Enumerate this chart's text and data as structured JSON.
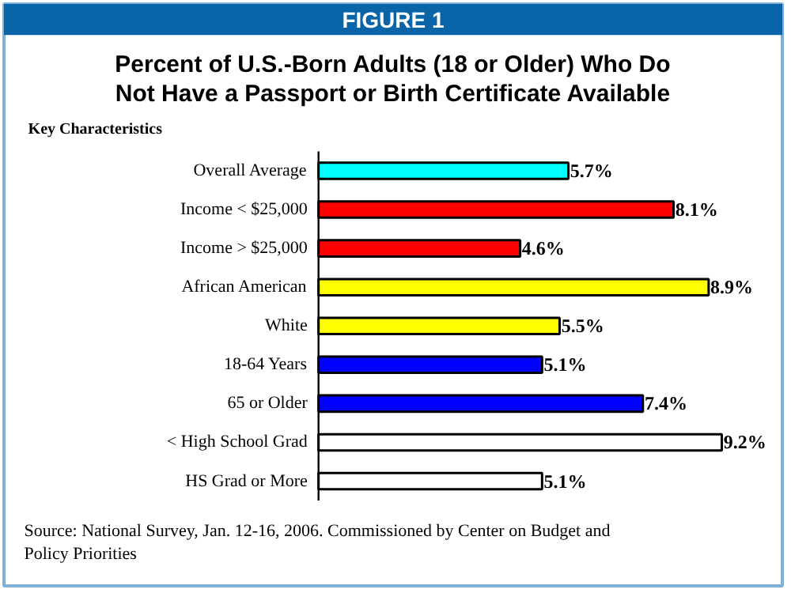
{
  "chart_data": {
    "type": "bar",
    "orientation": "horizontal",
    "title": "Percent of U.S.-Born Adults (18 or Older) Who Do Not Have a Passport or Birth Certificate Available",
    "ylabel": "Key Characteristics",
    "annotations": [
      "FIGURE 1",
      "Source: National Survey, Jan. 12-16, 2006. Commissioned by Center on Budget and Policy Priorities"
    ],
    "categories": [
      "Overall Average",
      "Income < $25,000",
      "Income > $25,000",
      "African American",
      "White",
      "18-64 Years",
      "65 or Older",
      "< High School Grad",
      "HS Grad or More"
    ],
    "values": [
      5.7,
      8.1,
      4.6,
      8.9,
      5.5,
      5.1,
      7.4,
      9.2,
      5.1
    ],
    "colors": [
      "#00ffff",
      "#ff0000",
      "#ff0000",
      "#ffff00",
      "#ffff00",
      "#0000ff",
      "#0000ff",
      "#ffffff",
      "#ffffff"
    ],
    "value_labels": [
      "5.7%",
      "8.1%",
      "4.6%",
      "8.9%",
      "5.5%",
      "5.1%",
      "7.4%",
      "9.2%",
      "5.1%"
    ]
  }
}
